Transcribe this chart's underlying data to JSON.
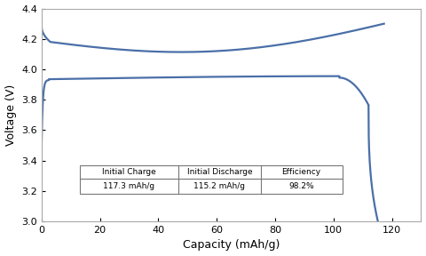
{
  "title": "",
  "xlabel": "Capacity (mAh/g)",
  "ylabel": "Voltage (V)",
  "xlim": [
    0,
    130
  ],
  "ylim": [
    3.0,
    4.4
  ],
  "xticks": [
    0,
    20,
    40,
    60,
    80,
    100,
    120
  ],
  "yticks": [
    3.0,
    3.2,
    3.4,
    3.6,
    3.8,
    4.0,
    4.2,
    4.4
  ],
  "line_color": "#4a6fa8",
  "line_width": 1.6,
  "table_headers": [
    "Initial Charge",
    "Initial Discharge",
    "Efficiency"
  ],
  "table_values": [
    "117.3 mAh/g",
    "115.2 mAh/g",
    "98.2%"
  ],
  "table_cols": [
    13,
    47,
    75,
    103
  ],
  "table_rows": [
    3.37,
    3.28,
    3.18
  ],
  "charge_capacity": 117.3,
  "discharge_capacity": 115.2
}
